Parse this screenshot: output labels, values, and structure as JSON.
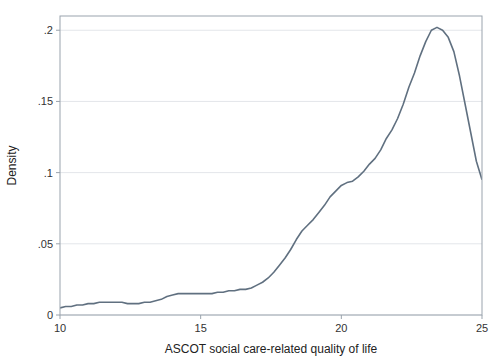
{
  "chart_data": {
    "type": "line",
    "xlabel": "ASCOT social care-related quality of life",
    "ylabel": "Density",
    "x": [
      10.0,
      10.2,
      10.4,
      10.6,
      10.8,
      11.0,
      11.2,
      11.4,
      11.6,
      11.8,
      12.0,
      12.2,
      12.4,
      12.6,
      12.8,
      13.0,
      13.2,
      13.4,
      13.6,
      13.8,
      14.0,
      14.2,
      14.4,
      14.6,
      14.8,
      15.0,
      15.2,
      15.4,
      15.6,
      15.8,
      16.0,
      16.2,
      16.4,
      16.6,
      16.8,
      17.0,
      17.2,
      17.4,
      17.6,
      17.8,
      18.0,
      18.2,
      18.4,
      18.6,
      18.8,
      19.0,
      19.2,
      19.4,
      19.6,
      19.8,
      20.0,
      20.2,
      20.4,
      20.6,
      20.8,
      21.0,
      21.2,
      21.4,
      21.6,
      21.8,
      22.0,
      22.2,
      22.4,
      22.6,
      22.8,
      23.0,
      23.2,
      23.4,
      23.6,
      23.8,
      24.0,
      24.2,
      24.4,
      24.6,
      24.8,
      25.0
    ],
    "values": [
      0.005,
      0.006,
      0.006,
      0.007,
      0.007,
      0.008,
      0.008,
      0.009,
      0.009,
      0.009,
      0.009,
      0.009,
      0.008,
      0.008,
      0.008,
      0.009,
      0.009,
      0.01,
      0.011,
      0.013,
      0.014,
      0.015,
      0.015,
      0.015,
      0.015,
      0.015,
      0.015,
      0.015,
      0.016,
      0.016,
      0.017,
      0.017,
      0.018,
      0.018,
      0.019,
      0.021,
      0.023,
      0.026,
      0.03,
      0.035,
      0.04,
      0.046,
      0.053,
      0.059,
      0.063,
      0.067,
      0.072,
      0.077,
      0.083,
      0.087,
      0.091,
      0.093,
      0.094,
      0.097,
      0.101,
      0.106,
      0.11,
      0.116,
      0.124,
      0.13,
      0.138,
      0.148,
      0.16,
      0.17,
      0.182,
      0.192,
      0.2,
      0.202,
      0.2,
      0.195,
      0.185,
      0.168,
      0.148,
      0.128,
      0.108,
      0.095
    ],
    "color": "#607080",
    "xlim": [
      10,
      25
    ],
    "ylim": [
      0,
      0.21
    ],
    "xticks": [
      10,
      15,
      20,
      25
    ],
    "yticks": [
      0,
      {
        "value": 0.05,
        "label": ".05"
      },
      {
        "value": 0.1,
        "label": ".1"
      },
      {
        "value": 0.15,
        "label": ".15"
      },
      {
        "value": 0.2,
        "label": ".2"
      }
    ],
    "grid": true
  }
}
